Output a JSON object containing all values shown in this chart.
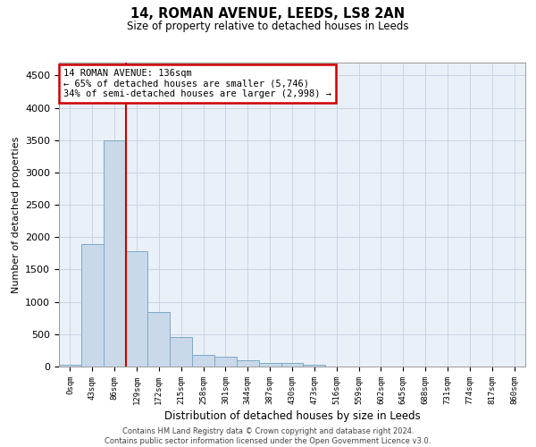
{
  "title_line1": "14, ROMAN AVENUE, LEEDS, LS8 2AN",
  "title_line2": "Size of property relative to detached houses in Leeds",
  "xlabel": "Distribution of detached houses by size in Leeds",
  "ylabel": "Number of detached properties",
  "bar_color": "#c9d9ea",
  "bar_edge_color": "#7aaac8",
  "vline_color": "#cc0000",
  "annotation_text": "14 ROMAN AVENUE: 136sqm\n← 65% of detached houses are smaller (5,746)\n34% of semi-detached houses are larger (2,998) →",
  "annotation_box_color": "#ffffff",
  "annotation_box_edge": "#cc0000",
  "categories": [
    "0sqm",
    "43sqm",
    "86sqm",
    "129sqm",
    "172sqm",
    "215sqm",
    "258sqm",
    "301sqm",
    "344sqm",
    "387sqm",
    "430sqm",
    "473sqm",
    "516sqm",
    "559sqm",
    "602sqm",
    "645sqm",
    "688sqm",
    "731sqm",
    "774sqm",
    "817sqm",
    "860sqm"
  ],
  "bar_values": [
    30,
    1900,
    3500,
    1780,
    840,
    450,
    175,
    155,
    90,
    55,
    50,
    30,
    5,
    2,
    1,
    0,
    0,
    0,
    0,
    0,
    0
  ],
  "ylim": [
    0,
    4700
  ],
  "yticks": [
    0,
    500,
    1000,
    1500,
    2000,
    2500,
    3000,
    3500,
    4000,
    4500
  ],
  "vline_bin_index": 3,
  "footer_line1": "Contains HM Land Registry data © Crown copyright and database right 2024.",
  "footer_line2": "Contains public sector information licensed under the Open Government Licence v3.0.",
  "background_color": "#ffffff",
  "axes_bg_color": "#eaf0f8",
  "grid_color": "#c8d4e4"
}
